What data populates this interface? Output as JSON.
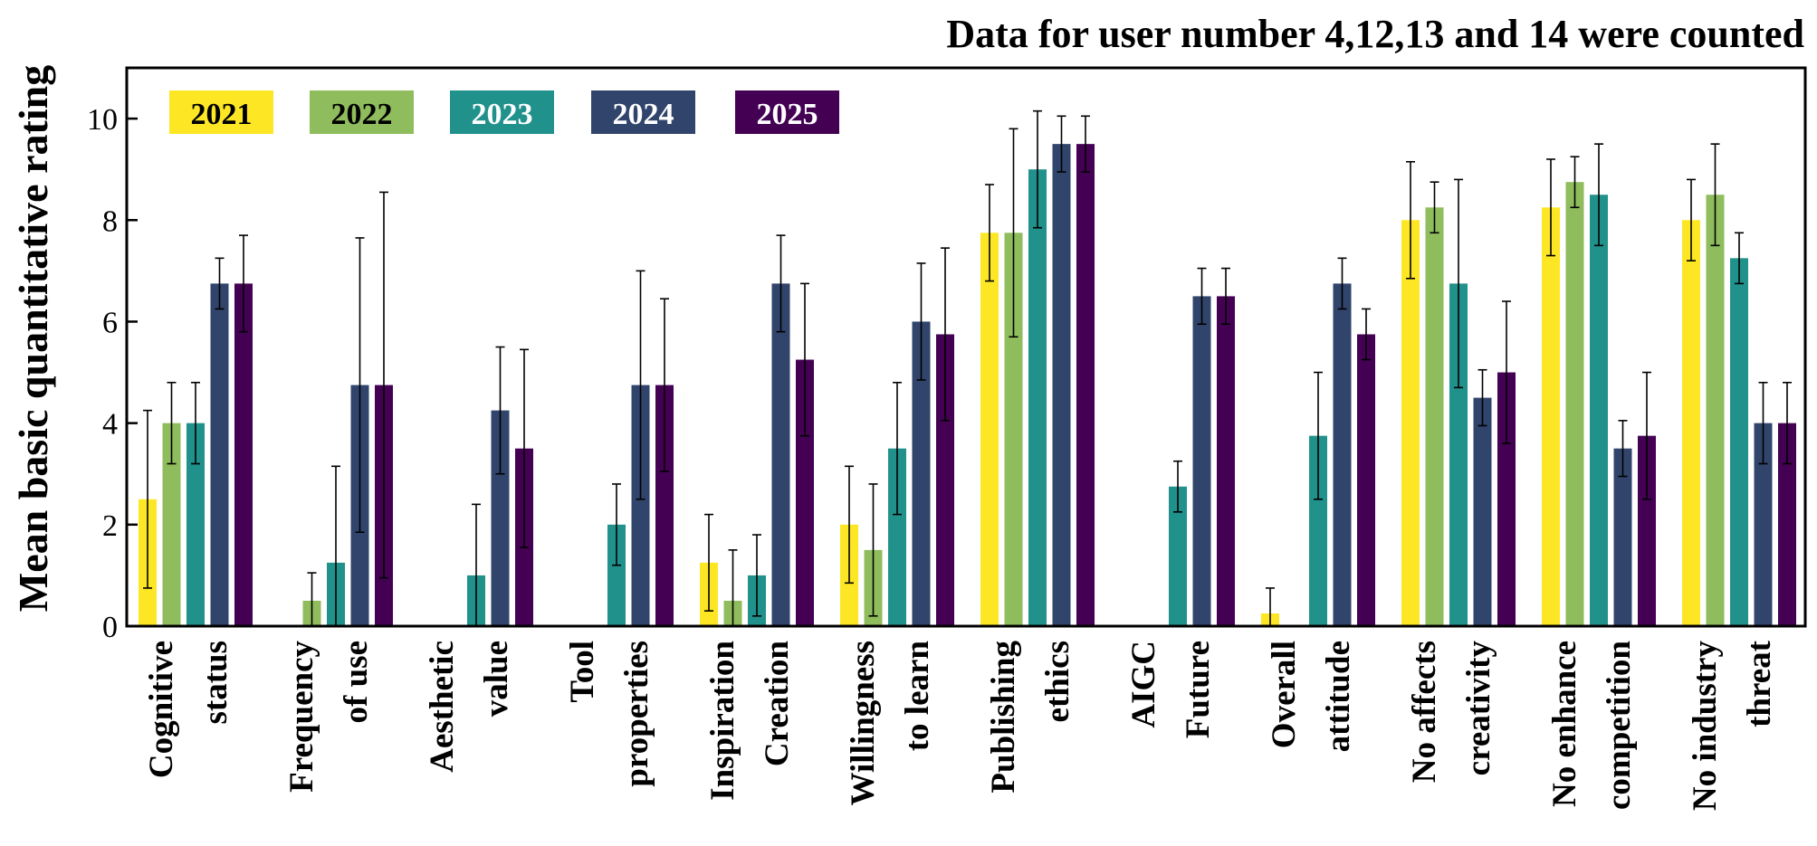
{
  "chart_data": {
    "type": "bar",
    "title": "Data for user number 4,12,13 and 14 were counted",
    "xlabel": "",
    "ylabel": "Mean basic quantitative rating",
    "ylim": [
      0,
      11
    ],
    "yticks": [
      "0",
      "2",
      "4",
      "6",
      "8",
      "10"
    ],
    "legend_position": "top-left",
    "categories": [
      [
        "Cognitive",
        "status"
      ],
      [
        "Frequency",
        "of use"
      ],
      [
        "Aesthetic",
        "value"
      ],
      [
        "Tool",
        "properties"
      ],
      [
        "Inspiration",
        "Creation"
      ],
      [
        "Willingness",
        "to learn"
      ],
      [
        "Publishing",
        "ethics"
      ],
      [
        "AIGC",
        "Future"
      ],
      [
        "Overall",
        "attitude"
      ],
      [
        "No affects",
        "creativity"
      ],
      [
        "No enhance",
        "competition"
      ],
      [
        "No industry",
        "threat"
      ]
    ],
    "series": [
      {
        "name": "2021",
        "color": "#fde725",
        "text_color": "#000000",
        "values": [
          2.5,
          0,
          0,
          0,
          1.25,
          2.0,
          7.75,
          0,
          0.25,
          8.0,
          8.25,
          8.0
        ],
        "errors": [
          1.75,
          0,
          0,
          0,
          0.95,
          1.15,
          0.95,
          0,
          0.5,
          1.15,
          0.95,
          0.8
        ]
      },
      {
        "name": "2022",
        "color": "#8fbc5c",
        "text_color": "#000000",
        "values": [
          4.0,
          0.5,
          0,
          0,
          0.5,
          1.5,
          7.75,
          0,
          0,
          8.25,
          8.75,
          8.5
        ],
        "errors": [
          0.8,
          0.55,
          0,
          0,
          1.0,
          1.3,
          2.05,
          0,
          0,
          0.5,
          0.5,
          1.0
        ]
      },
      {
        "name": "2023",
        "color": "#21918c",
        "text_color": "#ffffff",
        "values": [
          4.0,
          1.25,
          1.0,
          2.0,
          1.0,
          3.5,
          9.0,
          2.75,
          3.75,
          6.75,
          8.5,
          7.25
        ],
        "errors": [
          0.8,
          1.9,
          1.4,
          0.8,
          0.8,
          1.3,
          1.15,
          0.5,
          1.25,
          2.05,
          1.0,
          0.5
        ]
      },
      {
        "name": "2024",
        "color": "#31446b",
        "text_color": "#ffffff",
        "values": [
          6.75,
          4.75,
          4.25,
          4.75,
          6.75,
          6.0,
          9.5,
          6.5,
          6.75,
          4.5,
          3.5,
          4.0
        ],
        "errors": [
          0.5,
          2.9,
          1.25,
          2.25,
          0.95,
          1.15,
          0.55,
          0.55,
          0.5,
          0.55,
          0.55,
          0.8
        ]
      },
      {
        "name": "2025",
        "color": "#440154",
        "text_color": "#ffffff",
        "values": [
          6.75,
          4.75,
          3.5,
          4.75,
          5.25,
          5.75,
          9.5,
          6.5,
          5.75,
          5.0,
          3.75,
          4.0
        ],
        "errors": [
          0.95,
          3.8,
          1.95,
          1.7,
          1.5,
          1.7,
          0.55,
          0.55,
          0.5,
          1.4,
          1.25,
          0.8
        ]
      }
    ]
  }
}
